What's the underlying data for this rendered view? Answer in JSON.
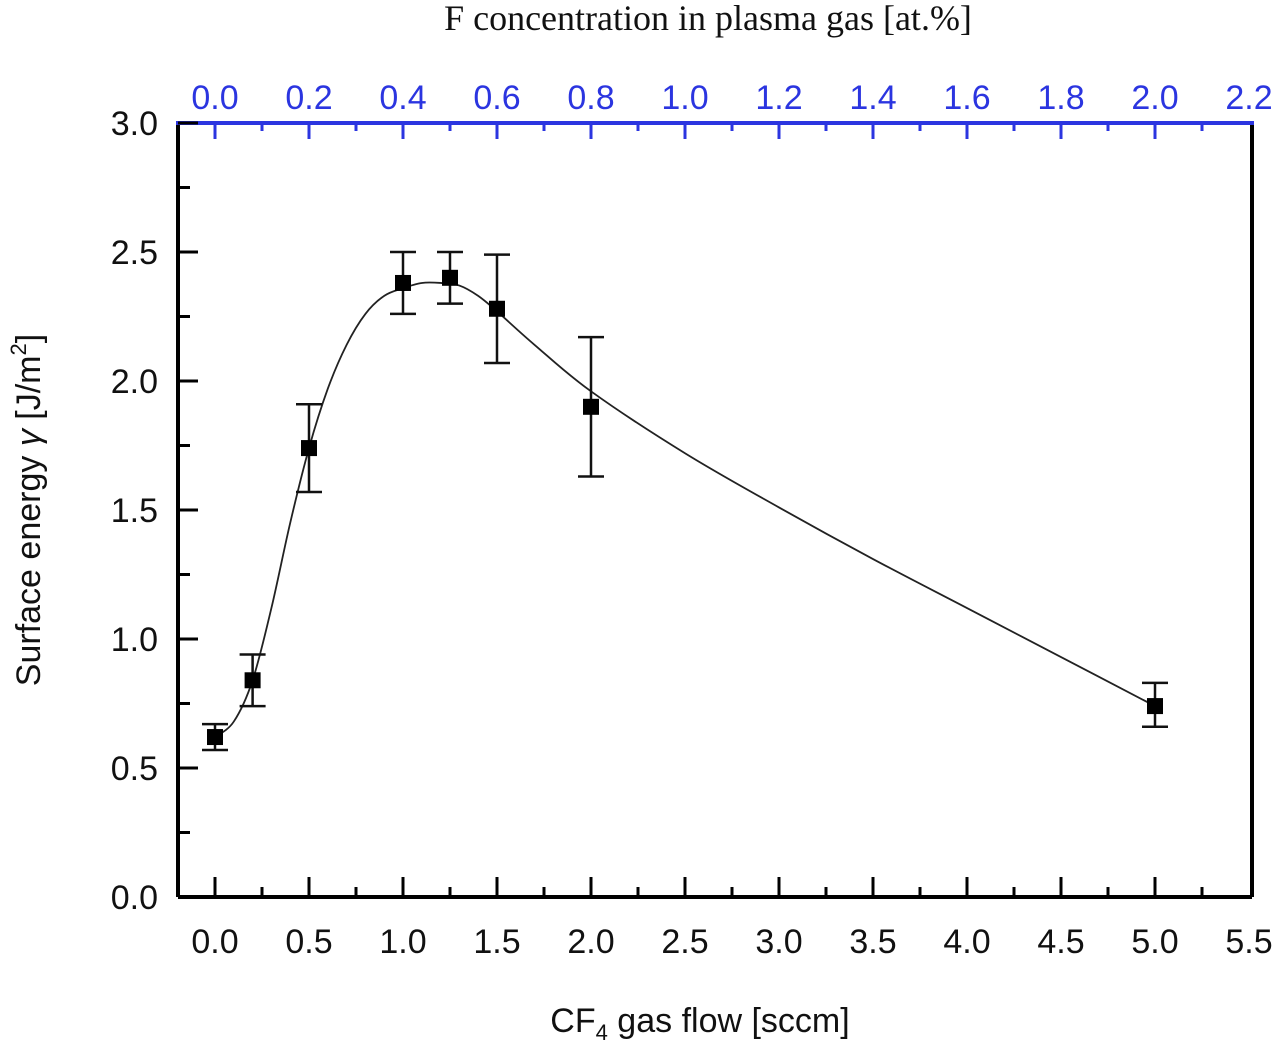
{
  "chart_data": {
    "type": "scatter",
    "title": "",
    "xlabel": "CF4 gas flow [sccm]",
    "xlabel_parts": {
      "pre": "CF",
      "sub": "4",
      "post": " gas flow [sccm]"
    },
    "ylabel": "Surface energy γ [J/m2]",
    "ylabel_parts": {
      "pre": "Surface energy ",
      "greek": "γ",
      "mid": " [J/m",
      "sup": "2",
      "post": "]"
    },
    "x2label": "F concentration in plasma gas [at.%]",
    "xlim": [
      -0.2,
      5.5
    ],
    "ylim": [
      0.0,
      3.0
    ],
    "x2lim": [
      -0.08,
      2.2
    ],
    "grid": false,
    "legend": null,
    "x_ticks": [
      "0.0",
      "0.5",
      "1.0",
      "1.5",
      "2.0",
      "2.5",
      "3.0",
      "3.5",
      "4.0",
      "4.5",
      "5.0",
      "5.5"
    ],
    "y_ticks": [
      "0.0",
      "0.5",
      "1.0",
      "1.5",
      "2.0",
      "2.5",
      "3.0"
    ],
    "x2_ticks": [
      "0.0",
      "0.2",
      "0.4",
      "0.6",
      "0.8",
      "1.0",
      "1.2",
      "1.4",
      "1.6",
      "1.8",
      "2.0",
      "2.2"
    ],
    "series": [
      {
        "name": "Surface energy",
        "marker": "square",
        "color": "#000000",
        "x": [
          0.0,
          0.2,
          0.5,
          1.0,
          1.25,
          1.5,
          2.0,
          5.0
        ],
        "y": [
          0.62,
          0.84,
          1.74,
          2.38,
          2.4,
          2.28,
          1.9,
          0.74
        ],
        "y_err_low": [
          0.57,
          0.74,
          1.57,
          2.26,
          2.3,
          2.07,
          1.63,
          0.66
        ],
        "y_err_high": [
          0.67,
          0.94,
          1.91,
          2.5,
          2.5,
          2.49,
          2.17,
          0.83
        ]
      }
    ],
    "fit_curve": {
      "x": [
        0.0,
        0.1,
        0.2,
        0.3,
        0.4,
        0.5,
        0.6,
        0.7,
        0.8,
        0.9,
        1.0,
        1.1,
        1.2,
        1.3,
        1.4,
        1.5,
        1.7,
        2.0,
        2.5,
        3.0,
        3.5,
        4.0,
        4.5,
        5.0
      ],
      "y": [
        0.62,
        0.68,
        0.84,
        1.12,
        1.45,
        1.74,
        1.97,
        2.14,
        2.26,
        2.33,
        2.36,
        2.38,
        2.38,
        2.37,
        2.33,
        2.27,
        2.14,
        1.96,
        1.72,
        1.51,
        1.31,
        1.12,
        0.93,
        0.74
      ]
    },
    "colors": {
      "axis": "#000000",
      "top_axis": "#2b35e0"
    }
  }
}
